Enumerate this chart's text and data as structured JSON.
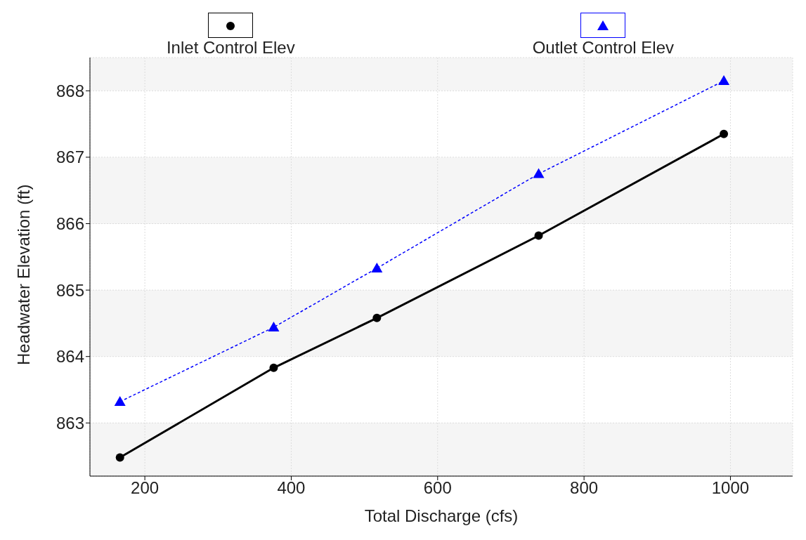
{
  "chart_data": {
    "type": "line",
    "xlabel": "Total Discharge (cfs)",
    "ylabel": "Headwater Elevation (ft)",
    "x": [
      166,
      376,
      517,
      738,
      991
    ],
    "series": [
      {
        "name": "Inlet Control Elev",
        "color": "#000000",
        "marker": "circle",
        "line_style": "solid",
        "values": [
          862.48,
          863.83,
          864.58,
          865.82,
          867.35
        ]
      },
      {
        "name": "Outlet Control Elev",
        "color": "#0000ff",
        "marker": "triangle",
        "line_style": "dashed",
        "values": [
          863.32,
          864.44,
          865.33,
          866.75,
          868.15
        ]
      }
    ],
    "xlim": [
      125,
      1085
    ],
    "xticks": [
      200,
      400,
      600,
      800,
      1000
    ],
    "ylim": [
      862.2,
      868.5
    ],
    "yticks": [
      863,
      864,
      865,
      866,
      867,
      868
    ],
    "grid": true,
    "legend": "top"
  }
}
